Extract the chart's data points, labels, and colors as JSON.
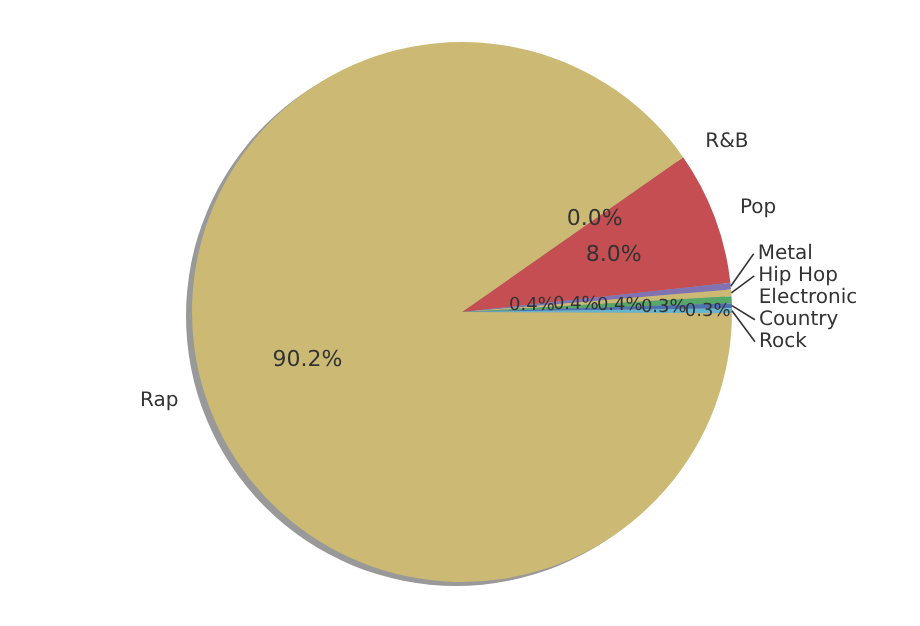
{
  "chart_data": {
    "type": "pie",
    "categories": [
      "R&B",
      "Pop",
      "Metal",
      "Hip Hop",
      "Electronic",
      "Country",
      "Rock",
      "Rap"
    ],
    "values": [
      0.0,
      8.0,
      0.4,
      0.4,
      0.4,
      0.3,
      0.3,
      90.2
    ],
    "value_labels": [
      "0.0%",
      "8.0%",
      "0.4%",
      "0.4%",
      "0.4%",
      "0.3%",
      "0.3%",
      "90.2%"
    ],
    "colors": [
      "#8172b2",
      "#c44e52",
      "#8172b2",
      "#ccb974",
      "#55a868",
      "#4c72b0",
      "#64b5cd",
      "#ccb974"
    ],
    "legend": false
  }
}
